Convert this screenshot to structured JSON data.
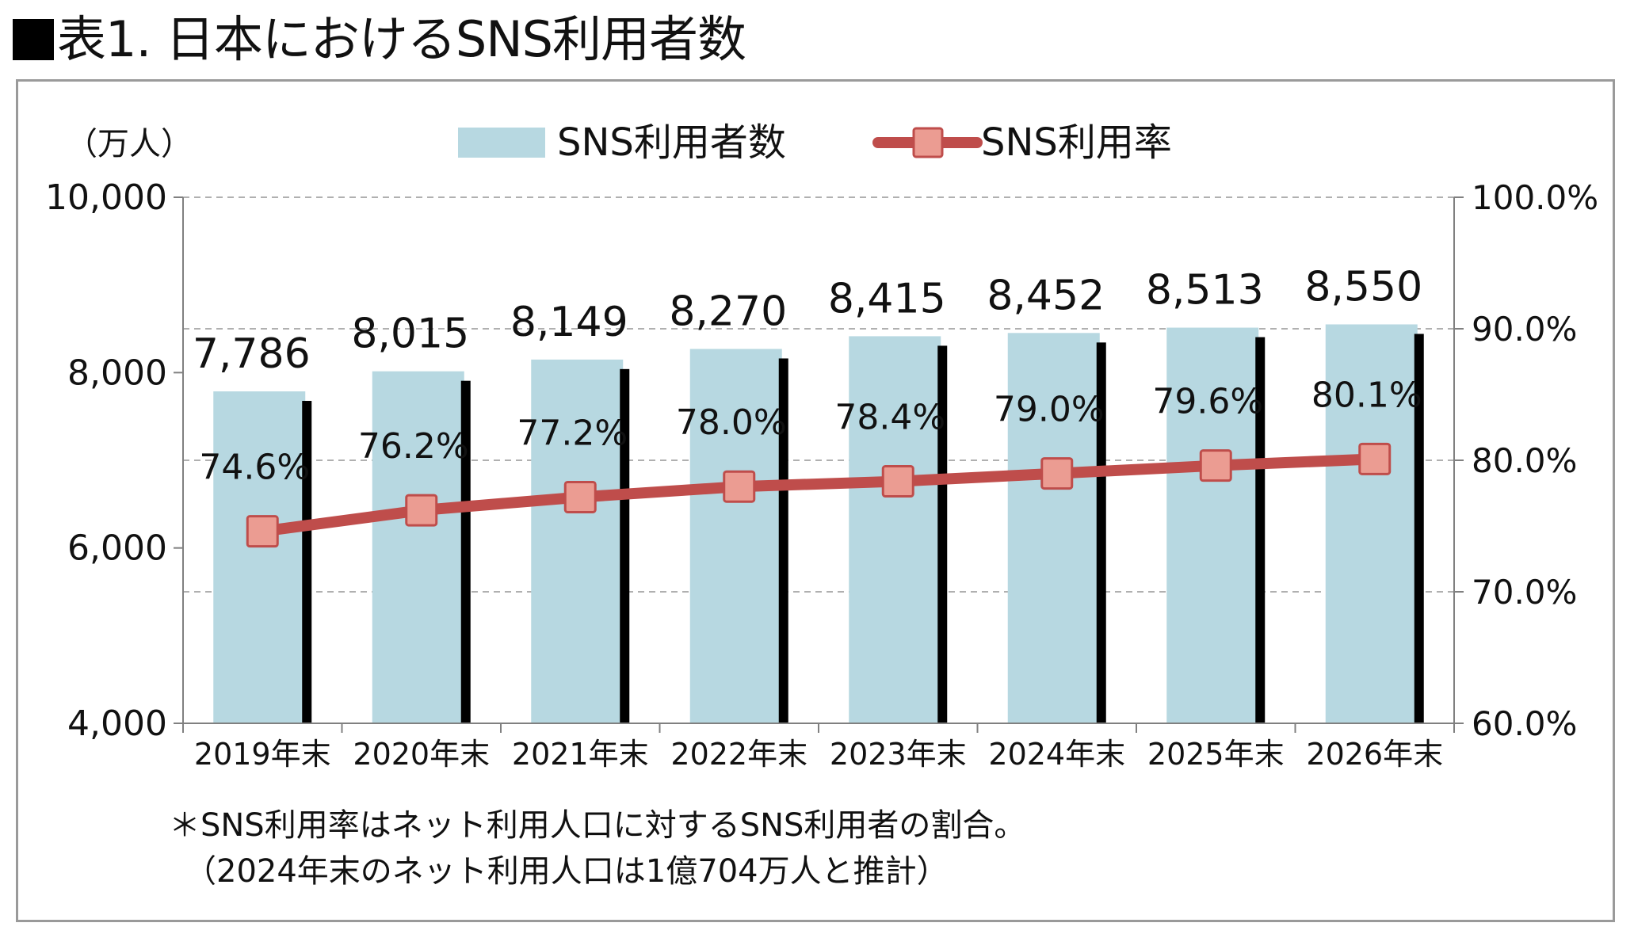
{
  "page_title": "表1. 日本におけるSNS利用者数",
  "notes": {
    "line1": "＊SNS利用率はネット利用人口に対するSNS利用者の割合。",
    "line2": "（2024年末のネット利用人口は1億704万人と推計）"
  },
  "colors": {
    "bar": "#b7d8e1",
    "bar_shadow": "#000000",
    "line": "#bf4d4b",
    "marker_fill": "#eb9c92",
    "grid": "#b0b0b0",
    "axis": "#808080"
  },
  "chart_data": {
    "type": "bar",
    "categories": [
      "2019年末",
      "2020年末",
      "2021年末",
      "2022年末",
      "2023年末",
      "2024年末",
      "2025年末",
      "2026年末"
    ],
    "series": [
      {
        "name": "SNS利用者数",
        "type": "bar",
        "axis": "left",
        "values": [
          7786,
          8015,
          8149,
          8270,
          8415,
          8452,
          8513,
          8550
        ],
        "labels": [
          "7,786",
          "8,015",
          "8,149",
          "8,270",
          "8,415",
          "8,452",
          "8,513",
          "8,550"
        ]
      },
      {
        "name": "SNS利用率",
        "type": "line",
        "axis": "right",
        "values": [
          74.6,
          76.2,
          77.2,
          78.0,
          78.4,
          79.0,
          79.6,
          80.1
        ],
        "labels": [
          "74.6%",
          "76.2%",
          "77.2%",
          "78.0%",
          "78.4%",
          "79.0%",
          "79.6%",
          "80.1%"
        ]
      }
    ],
    "y_left": {
      "unit_label": "（万人）",
      "range": [
        4000,
        10000
      ],
      "ticks": [
        4000,
        6000,
        8000,
        10000
      ],
      "tick_labels": [
        "4,000",
        "6,000",
        "8,000",
        "10,000"
      ]
    },
    "y_right": {
      "range": [
        60,
        100
      ],
      "ticks": [
        60,
        70,
        80,
        90,
        100
      ],
      "tick_labels": [
        "60.0%",
        "70.0%",
        "80.0%",
        "90.0%",
        "100.0%"
      ]
    },
    "grid": "horizontal dashed",
    "legend_position": "top-center"
  }
}
